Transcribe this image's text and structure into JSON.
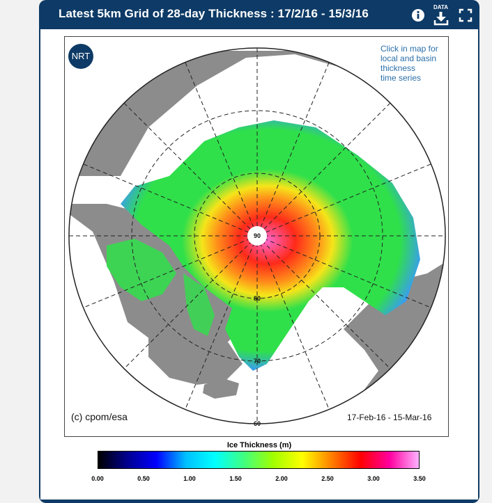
{
  "header": {
    "title": "Latest 5km Grid of 28-day Thickness : 17/2/16 - 15/3/16",
    "info_icon": "info-icon",
    "data_label": "DATA",
    "download_icon": "download-icon",
    "fullscreen_icon": "fullscreen-icon"
  },
  "map": {
    "badge": "NRT",
    "hint": "Click in map for\nlocal and basin\nthickness\ntime series",
    "copyright": "(c) cpom/esa",
    "date_range": "17-Feb-16 - 15-Mar-16",
    "latitude_labels": [
      "90",
      "80",
      "70",
      "60"
    ],
    "colors": {
      "land": "#8c8c8c",
      "ocean": "#ffffff",
      "thin_ice": "#3a9cf0",
      "medium_ice": "#2fe04a",
      "thick_ice": "#ff2a1a",
      "very_thick_ice": "#ff66cc"
    }
  },
  "legend": {
    "title": "Ice Thickness (m)",
    "ticks": [
      "0.00",
      "0.50",
      "1.00",
      "1.50",
      "2.00",
      "2.50",
      "3.00",
      "3.50"
    ],
    "colors": [
      "#000000",
      "#00008f",
      "#0000ff",
      "#00bfff",
      "#00ffff",
      "#40ff80",
      "#a0ff00",
      "#ffff00",
      "#ff8000",
      "#ff0000",
      "#ff00a0",
      "#ffb3ff"
    ]
  }
}
